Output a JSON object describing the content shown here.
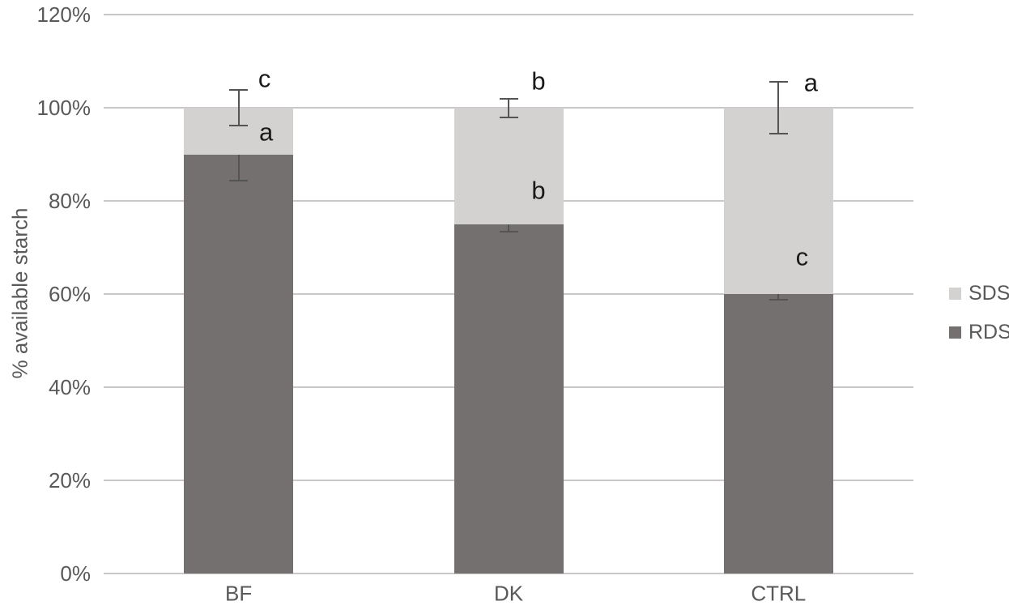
{
  "chart_data": {
    "type": "bar",
    "stacked": true,
    "ylabel": "% available starch",
    "categories": [
      "BF",
      "DK",
      "CTRL"
    ],
    "series": [
      {
        "name": "RDS",
        "color": "#757070",
        "values": [
          90,
          75,
          60
        ],
        "error": [
          5.7,
          1.6,
          1.3
        ]
      },
      {
        "name": "SDS",
        "color": "#d4d1d1",
        "values": [
          10,
          25,
          40
        ],
        "error": [
          3.8,
          2.0,
          5.5
        ]
      }
    ],
    "error_bar_note": "error bars centered on cumulative segment tops (RDS at RDS value, SDS at 100%)",
    "ylim": [
      0,
      120
    ],
    "yticks": [
      0,
      20,
      40,
      60,
      80,
      100,
      120
    ],
    "ytick_labels": [
      "0%",
      "20%",
      "40%",
      "60%",
      "80%",
      "100%",
      "120%"
    ],
    "grid": true,
    "legend_position": "right",
    "legend_order": [
      "SDS",
      "RDS"
    ],
    "annotations": [
      {
        "category": "BF",
        "label": "c",
        "value": 106.3,
        "dx": 32
      },
      {
        "category": "BF",
        "label": "a",
        "value": 94.8,
        "dx": 34
      },
      {
        "category": "DK",
        "label": "b",
        "value": 105.7,
        "dx": 37
      },
      {
        "category": "DK",
        "label": "b",
        "value": 82.3,
        "dx": 37
      },
      {
        "category": "CTRL",
        "label": "a",
        "value": 105.4,
        "dx": 40
      },
      {
        "category": "CTRL",
        "label": "c",
        "value": 68.0,
        "dx": 29
      }
    ],
    "colors": {
      "sds_fill": "#d4d1d1",
      "rds_fill": "#757070",
      "gridline": "#c9c7c7",
      "axis_text": "#595959",
      "annotation_text": "#1a1a1a",
      "error_bar": "#545454"
    }
  }
}
